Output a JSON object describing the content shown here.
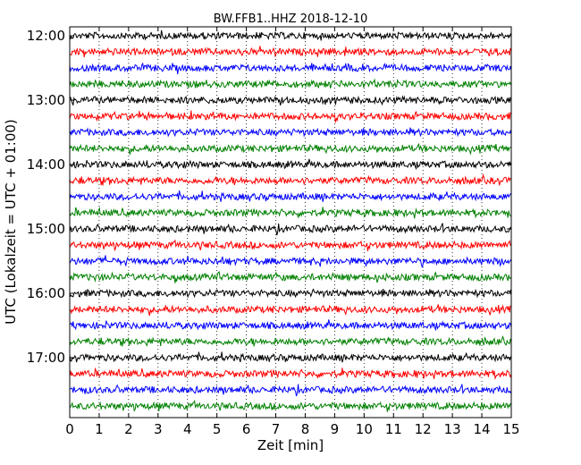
{
  "chart_data": {
    "type": "line",
    "title": "BW.FFB1..HHZ 2018-12-10",
    "xlabel": "Zeit  [min]",
    "ylabel": "UTC (Lokalzeit = UTC + 01:00)",
    "xlim": [
      0,
      15
    ],
    "x_ticks": [
      "0",
      "1",
      "2",
      "3",
      "4",
      "5",
      "6",
      "7",
      "8",
      "9",
      "10",
      "11",
      "12",
      "13",
      "14",
      "15"
    ],
    "y_tick_labels": [
      "12:00",
      "13:00",
      "14:00",
      "15:00",
      "16:00",
      "17:00"
    ],
    "vertical_grid": "dotted",
    "trace_interval_min": 15,
    "trace_start_times": [
      "12:00",
      "12:15",
      "12:30",
      "12:45",
      "13:00",
      "13:15",
      "13:30",
      "13:45",
      "14:00",
      "14:15",
      "14:30",
      "14:45",
      "15:00",
      "15:15",
      "15:30",
      "15:45",
      "16:00",
      "16:15",
      "16:30",
      "16:45",
      "17:00",
      "17:15",
      "17:30",
      "17:45"
    ],
    "trace_colors": [
      "#000000",
      "#ff0000",
      "#0000ff",
      "#008000"
    ]
  }
}
